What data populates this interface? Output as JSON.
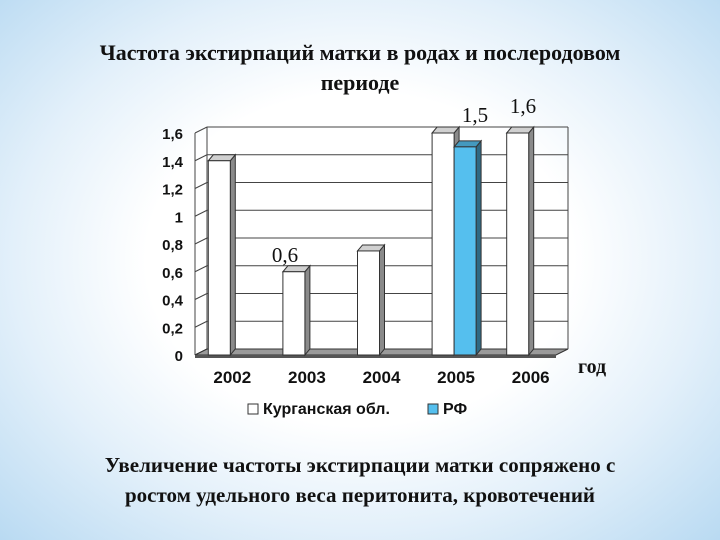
{
  "title_line1": "Частота экстирпаций матки в родах и послеродовом",
  "title_line2": "периоде",
  "footer_line1": "Увеличение частоты экстирпации матки сопряжено с",
  "footer_line2": "ростом удельного веса перитонита, кровотечений",
  "chart_data": {
    "type": "bar",
    "categories": [
      "2002",
      "2003",
      "2004",
      "2005",
      "2006"
    ],
    "series": [
      {
        "name": "Курганская обл.",
        "values": [
          1.4,
          0.6,
          0.75,
          1.6,
          1.6
        ],
        "color": "#ffffff"
      },
      {
        "name": "РФ",
        "values": [
          null,
          null,
          null,
          1.5,
          null
        ],
        "color": "#55bfee"
      }
    ],
    "yticks": [
      "0",
      "0,2",
      "0,4",
      "0,6",
      "0,8",
      "1",
      "1,2",
      "1,4",
      "1,6"
    ],
    "ylim": [
      0,
      1.6
    ],
    "xlabel": "год",
    "annotations": [
      "1,5",
      "1,6",
      "0,6"
    ],
    "legend_position": "bottom",
    "grid": true
  }
}
